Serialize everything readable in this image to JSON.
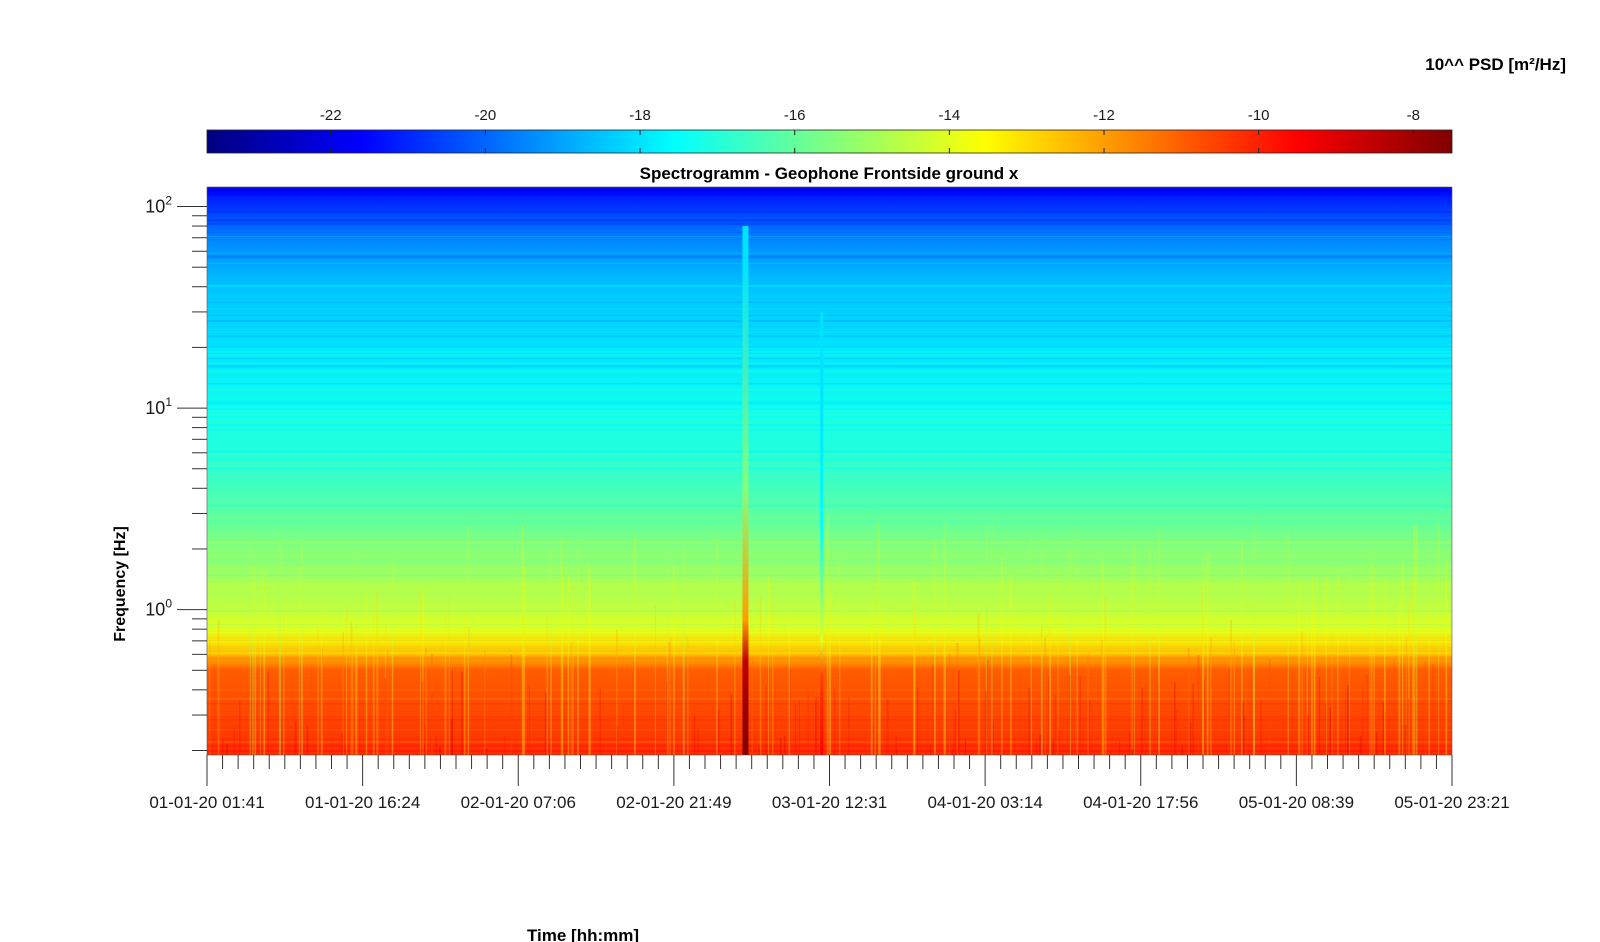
{
  "chart_data": {
    "type": "heatmap",
    "title": "Spectrogramm - Geophone Frontside ground x",
    "xlabel": "Time [hh:mm]",
    "ylabel": "Frequency [Hz]",
    "colorbar": {
      "label": "10^^ PSD [m²/Hz]",
      "range": [
        -23.6,
        -7.5
      ],
      "ticks": [
        -22,
        -20,
        -18,
        -16,
        -14,
        -12,
        -10,
        -8
      ],
      "tick_labels": [
        "-22",
        "-20",
        "-18",
        "-16",
        "-14",
        "-12",
        "-10",
        "-8"
      ],
      "colormap": "jet",
      "placement": "top"
    },
    "x_axis": {
      "ticks": [
        "01-01-20 01:41",
        "01-01-20 16:24",
        "02-01-20 07:06",
        "02-01-20 21:49",
        "03-01-20 12:31",
        "04-01-20 03:14",
        "04-01-20 17:56",
        "05-01-20 08:39",
        "05-01-20 23:21"
      ],
      "minor_ticks_per_interval": 9
    },
    "y_axis": {
      "scale": "log",
      "range_hz": [
        0.19,
        125
      ],
      "major_ticks": [
        1,
        10,
        100
      ],
      "tick_base": "10",
      "tick_exponents": [
        "0",
        "1",
        "2"
      ]
    },
    "psd_profile_by_frequency": {
      "frequency_hz": [
        0.2,
        0.3,
        0.5,
        0.6,
        0.8,
        1,
        2,
        4,
        6,
        10,
        20,
        40,
        70,
        100,
        125
      ],
      "log10_psd": [
        -10.3,
        -10.6,
        -11.0,
        -12.5,
        -14.0,
        -14.5,
        -15.5,
        -16.5,
        -17.0,
        -17.3,
        -18.0,
        -18.5,
        -19.5,
        -20.8,
        -21.5
      ]
    },
    "events": [
      {
        "time": "03-01-20 ~02:50",
        "frequency_range_hz": [
          0.19,
          80
        ],
        "peak_log10_psd": -7.5
      },
      {
        "time": "03-01-20 ~10:00",
        "frequency_range_hz": [
          0.19,
          30
        ],
        "peak_log10_psd": -9.5
      }
    ]
  }
}
